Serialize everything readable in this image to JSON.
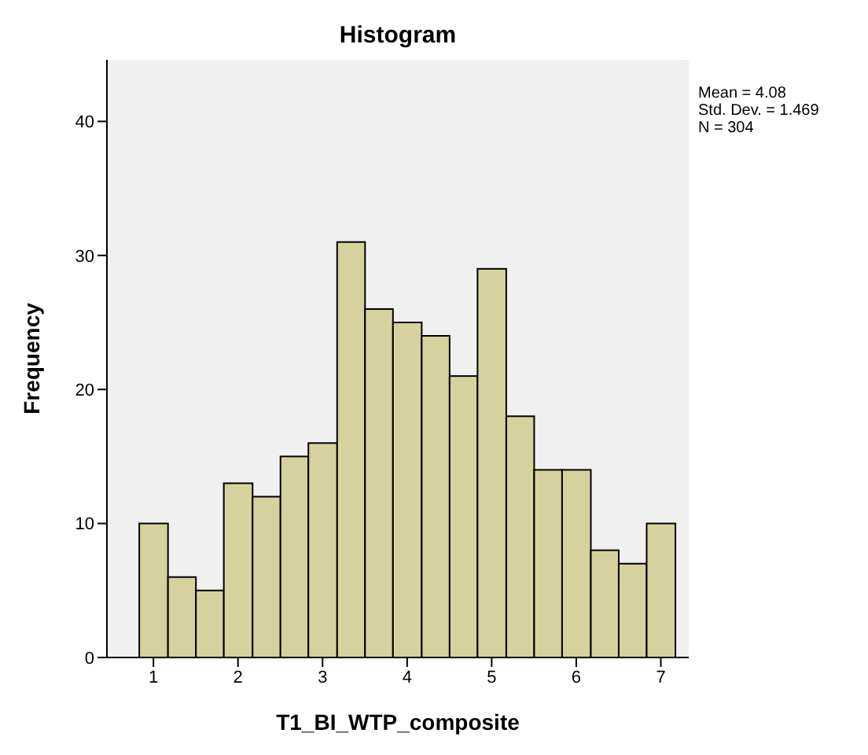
{
  "chart_data": {
    "type": "histogram",
    "title": "Histogram",
    "xlabel": "T1_BI_WTP_composite",
    "ylabel": "Frequency",
    "bins": [
      0.83,
      1.17,
      1.5,
      1.83,
      2.17,
      2.5,
      2.83,
      3.17,
      3.5,
      3.83,
      4.17,
      4.5,
      4.83,
      5.17,
      5.5,
      5.83,
      6.17,
      6.5,
      6.83,
      7.17
    ],
    "values": [
      10,
      6,
      5,
      13,
      12,
      15,
      16,
      31,
      26,
      25,
      24,
      21,
      29,
      18,
      14,
      14,
      8,
      7,
      10
    ],
    "color": "#d6d29d",
    "xlim": [
      0.45,
      7.33
    ],
    "xticks": [
      1,
      2,
      3,
      4,
      5,
      6,
      7
    ],
    "ylim": [
      0,
      44.6
    ],
    "yticks": [
      0,
      10,
      20,
      30,
      40
    ],
    "grid": false,
    "annotations": [
      "Mean = 4.08",
      "Std. Dev. = 1.469",
      "N = 304"
    ]
  }
}
